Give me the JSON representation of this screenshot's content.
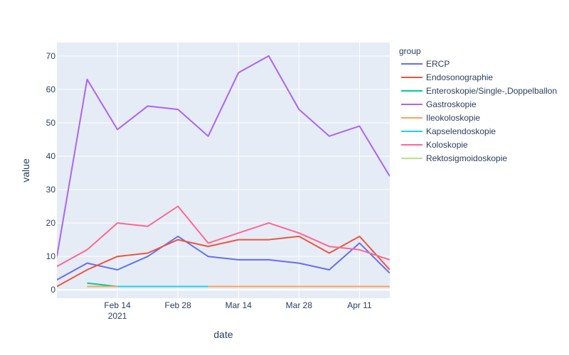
{
  "chart_data": {
    "type": "line",
    "title": "",
    "xlabel": "date",
    "ylabel": "value",
    "x": [
      "2021-01-31",
      "2021-02-07",
      "2021-02-14",
      "2021-02-21",
      "2021-02-28",
      "2021-03-07",
      "2021-03-14",
      "2021-03-21",
      "2021-03-28",
      "2021-04-04",
      "2021-04-11",
      "2021-04-18"
    ],
    "xlim": [
      "2021-01-31",
      "2021-04-18"
    ],
    "ylim": [
      -2.5,
      74
    ],
    "x_ticks": [
      {
        "date": "2021-02-14",
        "label": "Feb 14",
        "sublabel": "2021"
      },
      {
        "date": "2021-02-28",
        "label": "Feb 28",
        "sublabel": ""
      },
      {
        "date": "2021-03-14",
        "label": "Mar 14",
        "sublabel": ""
      },
      {
        "date": "2021-03-28",
        "label": "Mar 28",
        "sublabel": ""
      },
      {
        "date": "2021-04-11",
        "label": "Apr 11",
        "sublabel": ""
      }
    ],
    "y_ticks": [
      0,
      10,
      20,
      30,
      40,
      50,
      60,
      70
    ],
    "legend_title": "group",
    "legend_position": "right",
    "series": [
      {
        "name": "ERCP",
        "color": "#636efa",
        "values": [
          3,
          8,
          6,
          10,
          16,
          10,
          9,
          9,
          8,
          6,
          14,
          5
        ]
      },
      {
        "name": "Endosonographie",
        "color": "#EF553B",
        "values": [
          1,
          6,
          10,
          11,
          15,
          13,
          15,
          15,
          16,
          11,
          16,
          6
        ]
      },
      {
        "name": "Enteroskopie/Single-,Doppelballon",
        "color": "#00cc96",
        "values": [
          null,
          2,
          1,
          null,
          null,
          null,
          null,
          null,
          null,
          null,
          null,
          null
        ]
      },
      {
        "name": "Gastroskopie",
        "color": "#ab63fa",
        "values": [
          10,
          63,
          48,
          55,
          54,
          46,
          65,
          70,
          54,
          46,
          49,
          34
        ]
      },
      {
        "name": "Ileokoloskopie",
        "color": "#FFA15A",
        "values": [
          null,
          1,
          1,
          null,
          null,
          1,
          1,
          1,
          1,
          1,
          1,
          1
        ]
      },
      {
        "name": "Kapselendoskopie",
        "color": "#19d3f3",
        "values": [
          null,
          null,
          1,
          1,
          1,
          1,
          null,
          null,
          null,
          null,
          null,
          null
        ]
      },
      {
        "name": "Koloskopie",
        "color": "#FF6692",
        "values": [
          7,
          12,
          20,
          19,
          25,
          14,
          17,
          20,
          17,
          13,
          12,
          9
        ]
      },
      {
        "name": "Rektosigmoidoskopie",
        "color": "#B6E880",
        "values": [
          null,
          null,
          null,
          null,
          null,
          null,
          null,
          null,
          null,
          null,
          null,
          null
        ]
      }
    ]
  }
}
